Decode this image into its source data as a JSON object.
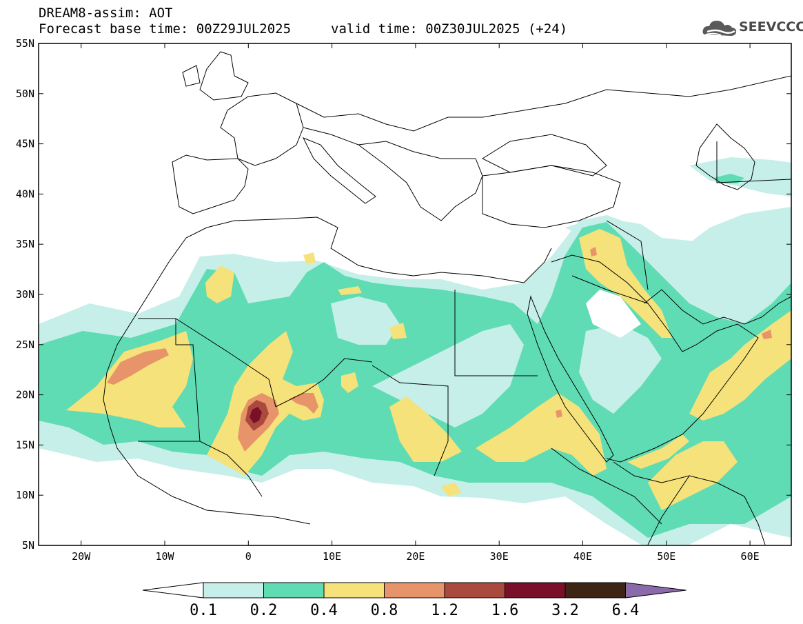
{
  "header": {
    "line1": "DREAM8-assim: AOT",
    "line2": "Forecast base time: 00Z29JUL2025",
    "line3": "valid time: 00Z30JUL2025 (+24)"
  },
  "logo": {
    "text": "SEEVCCC",
    "icon": "cloud-icon"
  },
  "map": {
    "lat_labels": [
      "55N",
      "50N",
      "45N",
      "40N",
      "35N",
      "30N",
      "25N",
      "20N",
      "15N",
      "10N",
      "5N"
    ],
    "lon_labels": [
      "20W",
      "10W",
      "0",
      "10E",
      "20E",
      "30E",
      "40E",
      "50E",
      "60E"
    ]
  },
  "colorbar": {
    "levels": [
      "0.1",
      "0.2",
      "0.4",
      "0.8",
      "1.2",
      "1.6",
      "3.2",
      "6.4"
    ],
    "colors": [
      "#ffffff",
      "#c5efe8",
      "#5fdcb4",
      "#f5e27a",
      "#e8946a",
      "#aa4a3e",
      "#7a0f2a",
      "#3e2414",
      "#8a6aa8"
    ]
  }
}
